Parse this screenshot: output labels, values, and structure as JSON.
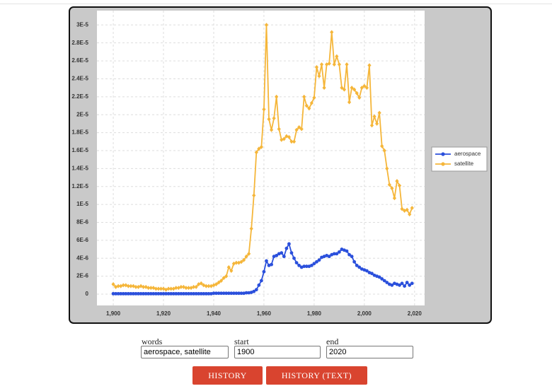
{
  "chart_data": {
    "type": "line",
    "x": [
      1900,
      1901,
      1902,
      1903,
      1904,
      1905,
      1906,
      1907,
      1908,
      1909,
      1910,
      1911,
      1912,
      1913,
      1914,
      1915,
      1916,
      1917,
      1918,
      1919,
      1920,
      1921,
      1922,
      1923,
      1924,
      1925,
      1926,
      1927,
      1928,
      1929,
      1930,
      1931,
      1932,
      1933,
      1934,
      1935,
      1936,
      1937,
      1938,
      1939,
      1940,
      1941,
      1942,
      1943,
      1944,
      1945,
      1946,
      1947,
      1948,
      1949,
      1950,
      1951,
      1952,
      1953,
      1954,
      1955,
      1956,
      1957,
      1958,
      1959,
      1960,
      1961,
      1962,
      1963,
      1964,
      1965,
      1966,
      1967,
      1968,
      1969,
      1970,
      1971,
      1972,
      1973,
      1974,
      1975,
      1976,
      1977,
      1978,
      1979,
      1980,
      1981,
      1982,
      1983,
      1984,
      1985,
      1986,
      1987,
      1988,
      1989,
      1990,
      1991,
      1992,
      1993,
      1994,
      1995,
      1996,
      1997,
      1998,
      1999,
      2000,
      2001,
      2002,
      2003,
      2004,
      2005,
      2006,
      2007,
      2008,
      2009,
      2010,
      2011,
      2012,
      2013,
      2014,
      2015,
      2016,
      2017,
      2018,
      2019
    ],
    "series": [
      {
        "name": "aerospace",
        "color": "#2b50dc",
        "values": [
          5e-08,
          5e-08,
          5e-08,
          5e-08,
          5e-08,
          5e-08,
          5e-08,
          5e-08,
          5e-08,
          5e-08,
          5e-08,
          5e-08,
          5e-08,
          5e-08,
          5e-08,
          5e-08,
          5e-08,
          5e-08,
          5e-08,
          5e-08,
          5e-08,
          5e-08,
          5e-08,
          5e-08,
          5e-08,
          5e-08,
          5e-08,
          5e-08,
          5e-08,
          5e-08,
          5e-08,
          5e-08,
          5e-08,
          5e-08,
          5e-08,
          5e-08,
          5e-08,
          5e-08,
          5e-08,
          5e-08,
          1e-07,
          1e-07,
          1e-07,
          1e-07,
          1e-07,
          1e-07,
          1e-07,
          1e-07,
          1e-07,
          1e-07,
          1e-07,
          1e-07,
          1e-07,
          1.5e-07,
          1.5e-07,
          2e-07,
          3e-07,
          5e-07,
          1e-06,
          1.5e-06,
          2.5e-06,
          3.7e-06,
          3.2e-06,
          3.3e-06,
          4.2e-06,
          4.3e-06,
          4.5e-06,
          4.6e-06,
          4.2e-06,
          5.1e-06,
          5.6e-06,
          4.6e-06,
          4e-06,
          3.5e-06,
          3.2e-06,
          3e-06,
          3.1e-06,
          3.1e-06,
          3.1e-06,
          3.2e-06,
          3.4e-06,
          3.6e-06,
          3.8e-06,
          4.1e-06,
          4.2e-06,
          4.3e-06,
          4.2e-06,
          4.4e-06,
          4.5e-06,
          4.5e-06,
          4.7e-06,
          5e-06,
          4.9e-06,
          4.8e-06,
          4.4e-06,
          4.2e-06,
          3.6e-06,
          3.2e-06,
          3e-06,
          2.8e-06,
          2.7e-06,
          2.6e-06,
          2.4e-06,
          2.3e-06,
          2.1e-06,
          2e-06,
          1.9e-06,
          1.7e-06,
          1.5e-06,
          1.3e-06,
          1.1e-06,
          1e-06,
          1.2e-06,
          1.1e-06,
          1e-06,
          1.2e-06,
          9e-07,
          1.3e-06,
          1e-06,
          1.2e-06
        ]
      },
      {
        "name": "satellite",
        "color": "#f5b63a",
        "values": [
          1.1e-06,
          8e-07,
          9e-07,
          9e-07,
          1e-06,
          1e-06,
          9e-07,
          9e-07,
          9e-07,
          8e-07,
          8e-07,
          9e-07,
          8e-07,
          8e-07,
          7e-07,
          7e-07,
          7e-07,
          6e-07,
          6e-07,
          6e-07,
          6e-07,
          5e-07,
          6e-07,
          6e-07,
          6e-07,
          7e-07,
          7e-07,
          8e-07,
          8e-07,
          7e-07,
          7e-07,
          7e-07,
          8e-07,
          8e-07,
          1.1e-06,
          1.2e-06,
          1e-06,
          9e-07,
          9e-07,
          9e-07,
          1e-06,
          1.1e-06,
          1.3e-06,
          1.5e-06,
          1.8e-06,
          2e-06,
          3e-06,
          2.6e-06,
          3.4e-06,
          3.5e-06,
          3.5e-06,
          3.6e-06,
          3.8e-06,
          4.2e-06,
          4.5e-06,
          7.3e-06,
          1.1e-05,
          1.58e-05,
          1.62e-05,
          1.64e-05,
          2.06e-05,
          3e-05,
          1.95e-05,
          1.83e-05,
          1.96e-05,
          2.2e-05,
          1.84e-05,
          1.72e-05,
          1.73e-05,
          1.76e-05,
          1.75e-05,
          1.7e-05,
          1.7e-05,
          1.83e-05,
          1.86e-05,
          1.84e-05,
          2.2e-05,
          2.1e-05,
          2.07e-05,
          2.13e-05,
          2.19e-05,
          2.53e-05,
          2.43e-05,
          2.56e-05,
          2.3e-05,
          2.56e-05,
          2.57e-05,
          2.92e-05,
          2.56e-05,
          2.65e-05,
          2.56e-05,
          2.3e-05,
          2.28e-05,
          2.56e-05,
          2.14e-05,
          2.3e-05,
          2.28e-05,
          2.24e-05,
          2.19e-05,
          2.3e-05,
          2.32e-05,
          2.3e-05,
          2.55e-05,
          1.88e-05,
          1.98e-05,
          1.9e-05,
          2.02e-05,
          1.65e-05,
          1.6e-05,
          1.4e-05,
          1.22e-05,
          1.18e-05,
          1.07e-05,
          1.26e-05,
          1.21e-05,
          9.5e-06,
          9.3e-06,
          9.4e-06,
          8.9e-06,
          9.6e-06
        ]
      }
    ],
    "xlim": [
      1893.5,
      2024
    ],
    "ylim": [
      -1.26e-06,
      3.16e-05
    ],
    "xticks": [
      {
        "value": 1900,
        "label": "1,900"
      },
      {
        "value": 1920,
        "label": "1,920"
      },
      {
        "value": 1940,
        "label": "1,940"
      },
      {
        "value": 1960,
        "label": "1,960"
      },
      {
        "value": 1980,
        "label": "1,980"
      },
      {
        "value": 2000,
        "label": "2,000"
      },
      {
        "value": 2020,
        "label": "2,020"
      }
    ],
    "yticks": [
      0,
      {
        "value": 2e-06,
        "label": "2E-6"
      },
      {
        "value": 4e-06,
        "label": "4E-6"
      },
      {
        "value": 6e-06,
        "label": "6E-6"
      },
      {
        "value": 8e-06,
        "label": "8E-6"
      },
      {
        "value": 1e-05,
        "label": "1E-5"
      },
      {
        "value": 1.2e-05,
        "label": "1.2E-5"
      },
      {
        "value": 1.4e-05,
        "label": "1.4E-5"
      },
      {
        "value": 1.6e-05,
        "label": "1.6E-5"
      },
      {
        "value": 1.8e-05,
        "label": "1.8E-5"
      },
      {
        "value": 2e-05,
        "label": "2E-5"
      },
      {
        "value": 2.2e-05,
        "label": "2.2E-5"
      },
      {
        "value": 2.4e-05,
        "label": "2.4E-5"
      },
      {
        "value": 2.6e-05,
        "label": "2.6E-5"
      },
      {
        "value": 2.8e-05,
        "label": "2.8E-5"
      },
      {
        "value": 3e-05,
        "label": "3E-5"
      }
    ],
    "grid": true,
    "legend": "right"
  },
  "form": {
    "words_label": "words",
    "words": "aerospace, satellite",
    "start_label": "start",
    "start": "1900",
    "end_label": "end",
    "end": "2020",
    "buttons": [
      "HISTORY",
      "HISTORY (TEXT)"
    ]
  }
}
